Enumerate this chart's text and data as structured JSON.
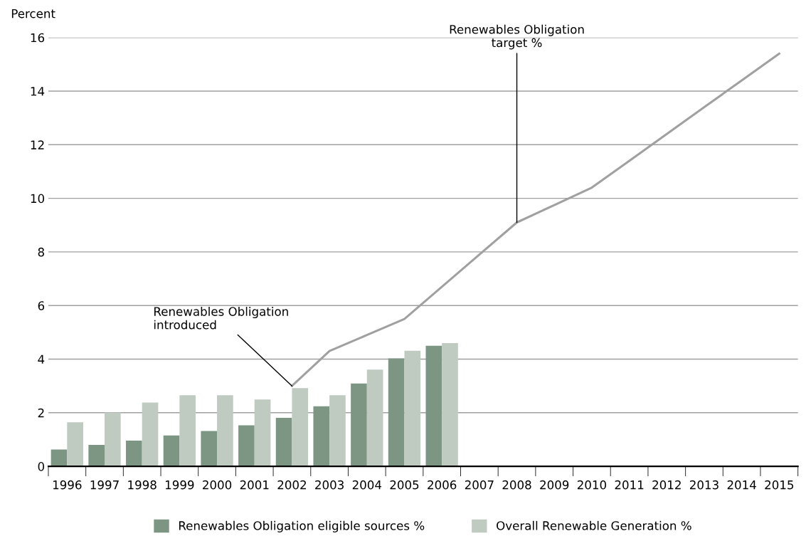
{
  "chart_data": {
    "type": "bar",
    "ylabel": "Percent",
    "categories": [
      "1996",
      "1997",
      "1998",
      "1999",
      "2000",
      "2001",
      "2002",
      "2003",
      "2004",
      "2005",
      "2006",
      "2007",
      "2008",
      "2009",
      "2010",
      "2011",
      "2012",
      "2013",
      "2014",
      "2015"
    ],
    "series": [
      {
        "name": "Renewables Obligation eligible sources %",
        "color": "#7d9684",
        "values": [
          0.63,
          0.8,
          0.96,
          1.15,
          1.32,
          1.53,
          1.81,
          2.24,
          3.09,
          4.03,
          4.5,
          null,
          null,
          null,
          null,
          null,
          null,
          null,
          null,
          null
        ]
      },
      {
        "name": "Overall Renewable Generation %",
        "color": "#bfcbc1",
        "values": [
          1.64,
          2.01,
          2.38,
          2.65,
          2.65,
          2.49,
          2.92,
          2.65,
          3.61,
          4.31,
          4.6,
          null,
          null,
          null,
          null,
          null,
          null,
          null,
          null,
          null
        ]
      },
      {
        "type": "line",
        "color": "#a0a0a0",
        "values": [
          null,
          null,
          null,
          null,
          null,
          null,
          3.0,
          4.3,
          4.9,
          5.5,
          6.7,
          7.9,
          9.1,
          9.75,
          10.4,
          11.4,
          12.4,
          13.4,
          14.4,
          15.4
        ]
      }
    ],
    "ylim": [
      0,
      16
    ],
    "yticks": [
      0,
      2,
      4,
      6,
      8,
      10,
      12,
      14,
      16
    ],
    "grid": "y",
    "legend": "bottom",
    "annotations": [
      {
        "text": "Renewables Obligation\nintroduced",
        "x": "2002",
        "y": 3.0
      },
      {
        "text": "Renewables Obligation\ntarget %",
        "x": "2008",
        "y": 9.1
      }
    ]
  }
}
